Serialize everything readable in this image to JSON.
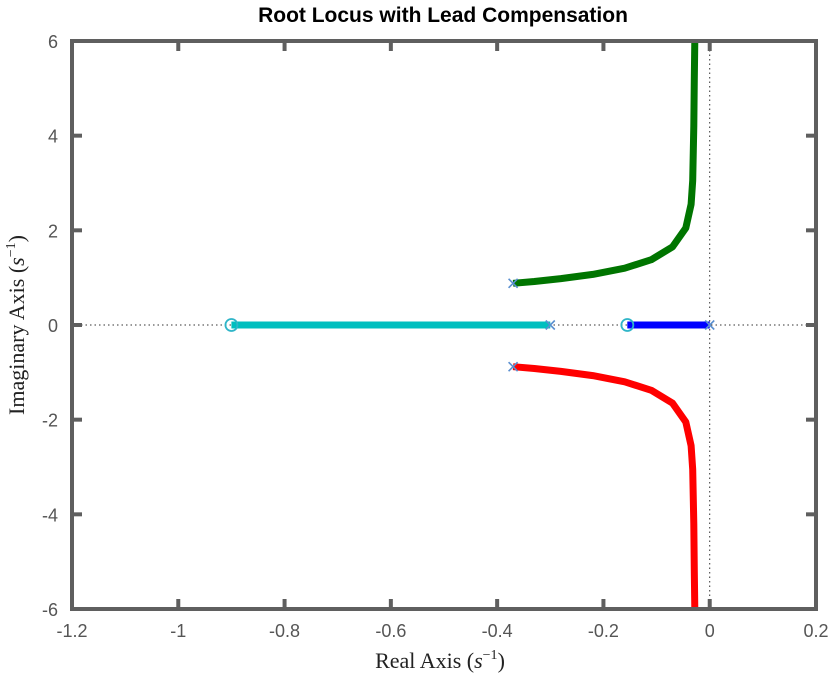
{
  "chart_data": {
    "type": "line",
    "title": "Root Locus with Lead Compensation",
    "xlabel": "Real Axis",
    "ylabel": "Imaginary Axis",
    "axis_unit_base": "s",
    "axis_unit_exp": "−1",
    "xlim": [
      -1.2,
      0.2
    ],
    "ylim": [
      -6,
      6
    ],
    "xticks": [
      -1.2,
      -1,
      -0.8,
      -0.6,
      -0.4,
      -0.2,
      0,
      0.2
    ],
    "yticks": [
      -6,
      -4,
      -2,
      0,
      2,
      4,
      6
    ],
    "xtick_labels": [
      "-1.2",
      "-1",
      "-0.8",
      "-0.6",
      "-0.4",
      "-0.2",
      "0",
      "0.2"
    ],
    "ytick_labels": [
      "-6",
      "-4",
      "-2",
      "0",
      "2",
      "4",
      "6"
    ],
    "grid": false,
    "poles": [
      {
        "x": -0.37,
        "y": 0.88
      },
      {
        "x": -0.37,
        "y": -0.88
      },
      {
        "x": -0.3,
        "y": 0
      },
      {
        "x": 0,
        "y": 0
      }
    ],
    "zeros": [
      {
        "x": -0.9,
        "y": 0
      },
      {
        "x": -0.155,
        "y": 0
      }
    ],
    "series": [
      {
        "color": "#007500",
        "points": [
          [
            -0.37,
            0.88
          ],
          [
            -0.33,
            0.92
          ],
          [
            -0.28,
            0.98
          ],
          [
            -0.22,
            1.07
          ],
          [
            -0.16,
            1.2
          ],
          [
            -0.11,
            1.38
          ],
          [
            -0.07,
            1.65
          ],
          [
            -0.045,
            2.05
          ],
          [
            -0.035,
            2.55
          ],
          [
            -0.032,
            3.05
          ],
          [
            -0.03,
            4.2
          ],
          [
            -0.029,
            5.2
          ],
          [
            -0.028,
            6
          ]
        ]
      },
      {
        "color": "#ff0000",
        "points": [
          [
            -0.37,
            -0.88
          ],
          [
            -0.33,
            -0.92
          ],
          [
            -0.28,
            -0.98
          ],
          [
            -0.22,
            -1.07
          ],
          [
            -0.16,
            -1.2
          ],
          [
            -0.11,
            -1.38
          ],
          [
            -0.07,
            -1.65
          ],
          [
            -0.045,
            -2.05
          ],
          [
            -0.035,
            -2.55
          ],
          [
            -0.032,
            -3.05
          ],
          [
            -0.03,
            -4.2
          ],
          [
            -0.029,
            -5.2
          ],
          [
            -0.028,
            -6
          ]
        ]
      },
      {
        "color": "#00bfbf",
        "points": [
          [
            -0.3,
            0
          ],
          [
            -0.9,
            0
          ]
        ]
      },
      {
        "color": "#0000ff",
        "points": [
          [
            0,
            0
          ],
          [
            -0.155,
            0
          ]
        ]
      }
    ],
    "marker_color": "#5a8fd0",
    "zero_marker_color": "#2fb5c8"
  }
}
